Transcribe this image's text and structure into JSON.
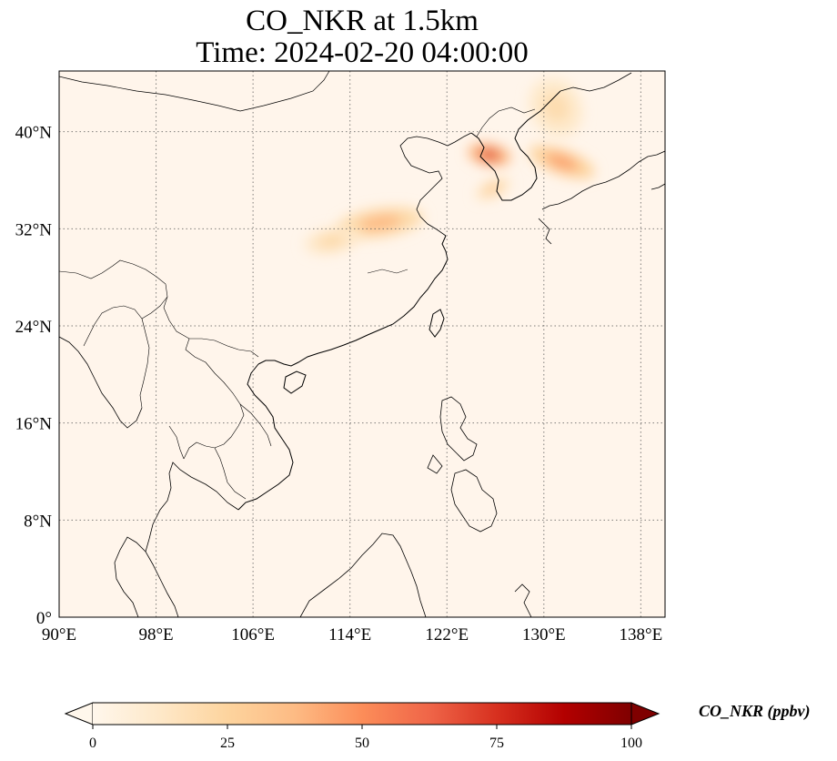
{
  "title": {
    "line1": "CO_NKR at 1.5km",
    "line2": "Time: 2024-02-20 04:00:00"
  },
  "map": {
    "lon_range": [
      90,
      140
    ],
    "lat_range": [
      0,
      45
    ],
    "lon_ticks": [
      {
        "value": 90,
        "label": "90°E"
      },
      {
        "value": 98,
        "label": "98°E"
      },
      {
        "value": 106,
        "label": "106°E"
      },
      {
        "value": 114,
        "label": "114°E"
      },
      {
        "value": 122,
        "label": "122°E"
      },
      {
        "value": 130,
        "label": "130°E"
      },
      {
        "value": 138,
        "label": "138°E"
      }
    ],
    "lat_ticks": [
      {
        "value": 0,
        "label": "0°"
      },
      {
        "value": 8,
        "label": "8°N"
      },
      {
        "value": 16,
        "label": "16°N"
      },
      {
        "value": 24,
        "label": "24°N"
      },
      {
        "value": 32,
        "label": "32°N"
      },
      {
        "value": 40,
        "label": "40°N"
      }
    ],
    "background_color": "#fff5eb",
    "gridlines": "dotted",
    "plumes": [
      {
        "name": "east-china",
        "lon": 116.5,
        "lat": 32.5,
        "value": 38
      },
      {
        "name": "central-china",
        "lon": 112.5,
        "lat": 31,
        "value": 22
      },
      {
        "name": "korea-west-sea",
        "lon": 125.5,
        "lat": 38.1,
        "value": 70
      },
      {
        "name": "korea-south",
        "lon": 125.8,
        "lat": 35.3,
        "value": 30
      },
      {
        "name": "east-sea",
        "lon": 131.5,
        "lat": 37.5,
        "value": 45
      },
      {
        "name": "manchuria",
        "lon": 131.0,
        "lat": 42.0,
        "value": 20
      }
    ]
  },
  "colorbar": {
    "label": "CO_NKR (ppbv)",
    "min": 0,
    "max": 100,
    "extend": "both",
    "colormap": "OrRd",
    "colors": [
      "#fff7ec",
      "#fee8c8",
      "#fdd49e",
      "#fdbb84",
      "#fc8d59",
      "#ef6548",
      "#d7301f",
      "#b30000",
      "#7f0000"
    ],
    "ticks": [
      {
        "value": 0,
        "label": "0"
      },
      {
        "value": 25,
        "label": "25"
      },
      {
        "value": 50,
        "label": "50"
      },
      {
        "value": 75,
        "label": "75"
      },
      {
        "value": 100,
        "label": "100"
      }
    ]
  }
}
